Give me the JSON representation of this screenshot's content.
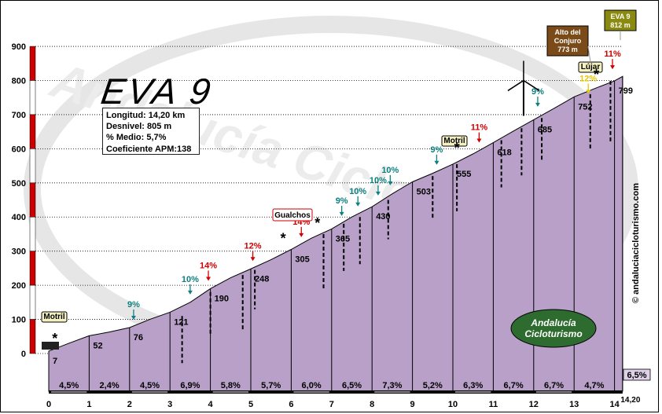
{
  "title": "EVA 9",
  "info": {
    "longitud": "Longitud: 14,20 km",
    "desnivel": "Desnivel: 805 m",
    "medio": "% Medio: 5,7%",
    "coeficiente": "Coeficiente APM:138"
  },
  "website": "© andaluciacicloturismo.com",
  "watermark": "Andalucía Cicloturismo",
  "logo_text_1": "Andalucía",
  "logo_text_2": "Cicloturismo",
  "signs": {
    "motril_start": "Motril",
    "motril_mid": "Motril",
    "gualchos": "Gualchos",
    "lujar": "Lújar",
    "alto_line1": "Alto del",
    "alto_line2": "Conjuro",
    "alto_line3": "773 m",
    "eva_line1": "EVA 9",
    "eva_line2": "812 m"
  },
  "colors": {
    "fill": "#b8a0c8",
    "fill_stroke": "#000000",
    "left_bar_red": "#cc0000",
    "teal_label": "#0e8080",
    "red_label": "#d10000",
    "yellow_label": "#e8c800"
  },
  "chart_data": {
    "type": "area",
    "xlabel": "",
    "ylabel": "",
    "xlim": [
      0,
      14.2
    ],
    "ylim": [
      0,
      900
    ],
    "y_ticks": [
      0,
      100,
      200,
      300,
      400,
      500,
      600,
      700,
      800,
      900
    ],
    "x_ticks": [
      0,
      1,
      2,
      3,
      4,
      5,
      6,
      7,
      8,
      9,
      10,
      11,
      12,
      13,
      14
    ],
    "x_end_label": "14,20",
    "profile": [
      {
        "x": 0,
        "y": 7
      },
      {
        "x": 0.5,
        "y": 30
      },
      {
        "x": 1,
        "y": 52
      },
      {
        "x": 1.5,
        "y": 63
      },
      {
        "x": 2,
        "y": 76
      },
      {
        "x": 2.5,
        "y": 100
      },
      {
        "x": 3,
        "y": 121
      },
      {
        "x": 3.5,
        "y": 150
      },
      {
        "x": 4,
        "y": 190
      },
      {
        "x": 4.5,
        "y": 222
      },
      {
        "x": 5,
        "y": 248
      },
      {
        "x": 5.5,
        "y": 275
      },
      {
        "x": 6,
        "y": 305
      },
      {
        "x": 6.5,
        "y": 338
      },
      {
        "x": 7,
        "y": 365
      },
      {
        "x": 7.5,
        "y": 400
      },
      {
        "x": 8,
        "y": 430
      },
      {
        "x": 8.5,
        "y": 468
      },
      {
        "x": 9,
        "y": 503
      },
      {
        "x": 9.5,
        "y": 528
      },
      {
        "x": 10,
        "y": 555
      },
      {
        "x": 10.5,
        "y": 585
      },
      {
        "x": 11,
        "y": 618
      },
      {
        "x": 11.5,
        "y": 652
      },
      {
        "x": 12,
        "y": 685
      },
      {
        "x": 12.5,
        "y": 718
      },
      {
        "x": 13,
        "y": 752
      },
      {
        "x": 13.5,
        "y": 776
      },
      {
        "x": 14,
        "y": 799
      },
      {
        "x": 14.2,
        "y": 812
      }
    ],
    "point_labels": [
      {
        "x": 0,
        "y": 7,
        "label": "7"
      },
      {
        "x": 1,
        "y": 52,
        "label": "52"
      },
      {
        "x": 2,
        "y": 76,
        "label": "76"
      },
      {
        "x": 3,
        "y": 121,
        "label": "121"
      },
      {
        "x": 4,
        "y": 190,
        "label": "190"
      },
      {
        "x": 5,
        "y": 248,
        "label": "248"
      },
      {
        "x": 6,
        "y": 305,
        "label": "305"
      },
      {
        "x": 7,
        "y": 365,
        "label": "365"
      },
      {
        "x": 8,
        "y": 430,
        "label": "430"
      },
      {
        "x": 9,
        "y": 503,
        "label": "503"
      },
      {
        "x": 10,
        "y": 555,
        "label": "555"
      },
      {
        "x": 11,
        "y": 618,
        "label": "618"
      },
      {
        "x": 12,
        "y": 685,
        "label": "685"
      },
      {
        "x": 13,
        "y": 752,
        "label": "752"
      },
      {
        "x": 14,
        "y": 799,
        "label": "799"
      }
    ],
    "segment_gradients": [
      "4,5%",
      "2,4%",
      "4,5%",
      "6,9%",
      "5,8%",
      "5,7%",
      "6,0%",
      "6,5%",
      "7,3%",
      "5,2%",
      "6,3%",
      "6,7%",
      "6,7%",
      "4,7%"
    ],
    "final_gradient": "6,5%",
    "ramp_labels": [
      {
        "x": 2.1,
        "y": 76,
        "label": "9%",
        "color": "teal"
      },
      {
        "x": 3.5,
        "y": 150,
        "label": "10%",
        "color": "teal"
      },
      {
        "x": 3.95,
        "y": 190,
        "label": "14%",
        "color": "red"
      },
      {
        "x": 5.05,
        "y": 248,
        "label": "12%",
        "color": "red"
      },
      {
        "x": 6.25,
        "y": 318,
        "label": "14%",
        "color": "red"
      },
      {
        "x": 7.25,
        "y": 380,
        "label": "9%",
        "color": "teal"
      },
      {
        "x": 7.65,
        "y": 408,
        "label": "10%",
        "color": "teal"
      },
      {
        "x": 8.15,
        "y": 440,
        "label": "10%",
        "color": "teal"
      },
      {
        "x": 8.45,
        "y": 470,
        "label": "10%",
        "color": "teal"
      },
      {
        "x": 9.6,
        "y": 530,
        "label": "9%",
        "color": "teal"
      },
      {
        "x": 10.65,
        "y": 595,
        "label": "11%",
        "color": "red"
      },
      {
        "x": 12.1,
        "y": 700,
        "label": "9%",
        "color": "teal"
      },
      {
        "x": 13.95,
        "y": 810,
        "label": "11%",
        "color": "red"
      },
      {
        "x": 13.35,
        "y": 738,
        "label": "12%",
        "color": "yellow"
      }
    ]
  }
}
